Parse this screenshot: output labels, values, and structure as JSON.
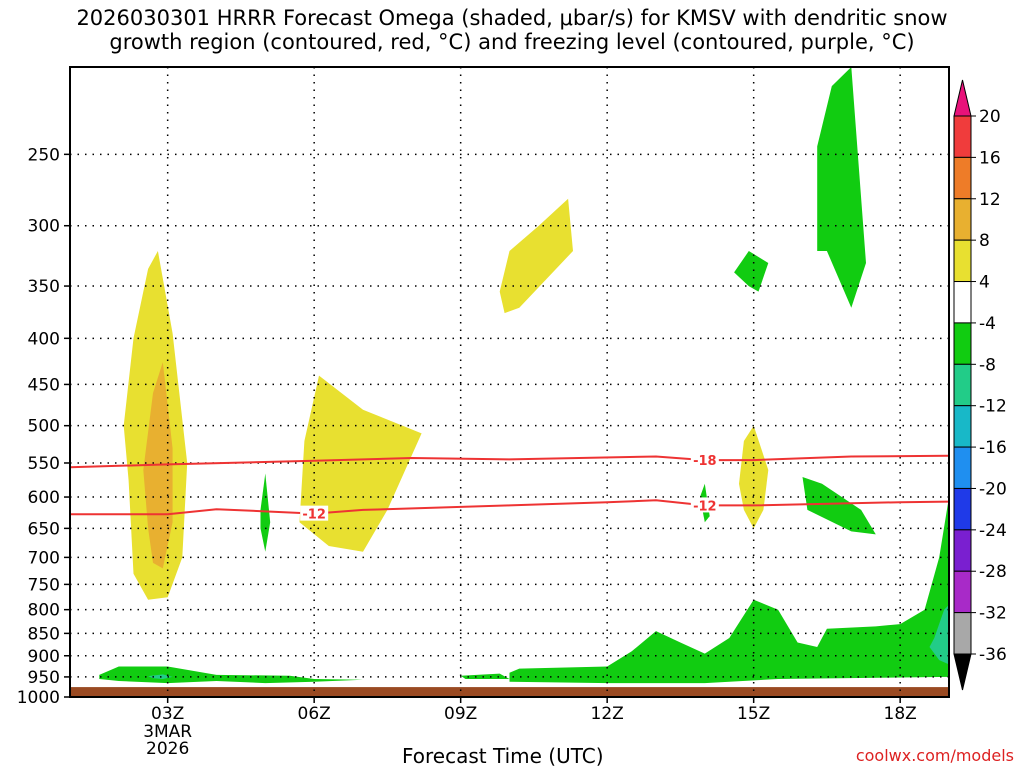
{
  "title": "2026030301 HRRR Forecast Omega (shaded, μbar/s) for KMSV with dendritic snow growth region (contoured, red, °C) and freezing level (contoured, purple, °C)",
  "credit": "coolwx.com/models",
  "colors": {
    "ground": "#9a4a22",
    "contour_red": "#ee3333",
    "grid": "#000000"
  },
  "chart_data": {
    "type": "heatmap",
    "title": "2026030301 HRRR Forecast Omega (shaded, μbar/s) for KMSV with dendritic snow growth region (contoured, red, °C) and freezing level (contoured, purple, °C)",
    "xlabel": "Forecast Time (UTC)",
    "ylabel": "",
    "x_ticks": [
      "03Z",
      "06Z",
      "09Z",
      "12Z",
      "15Z",
      "18Z"
    ],
    "x_first_tick_sub": [
      "3MAR",
      "2026"
    ],
    "y_ticks": [
      250,
      300,
      350,
      400,
      450,
      500,
      550,
      600,
      650,
      700,
      750,
      800,
      850,
      900,
      950,
      1000
    ],
    "xlim_hours": [
      1,
      19
    ],
    "ylim_hpa": [
      200,
      1000
    ],
    "grid": true,
    "colorbar": {
      "labels": [
        "20",
        "16",
        "12",
        "8",
        "4",
        "-4",
        "-8",
        "-12",
        "-16",
        "-20",
        "-24",
        "-28",
        "-32",
        "-36"
      ],
      "bands": [
        {
          "color": "#e8127a"
        },
        {
          "color": "#f03c3c"
        },
        {
          "color": "#ee7c28"
        },
        {
          "color": "#e8b030"
        },
        {
          "color": "#e8e030"
        },
        {
          "color": "#ffffff"
        },
        {
          "color": "#11cc11"
        },
        {
          "color": "#22cc88"
        },
        {
          "color": "#18b8c8"
        },
        {
          "color": "#1f8ff0"
        },
        {
          "color": "#1f3ae8"
        },
        {
          "color": "#7a1fd0"
        },
        {
          "color": "#a82ac8"
        },
        {
          "color": "#a8a8a8"
        },
        {
          "color": "#000000"
        }
      ]
    },
    "contours": [
      {
        "label": "-18",
        "points": [
          [
            1,
            556
          ],
          [
            3,
            552
          ],
          [
            6,
            547
          ],
          [
            8,
            543
          ],
          [
            10,
            545
          ],
          [
            13,
            541
          ],
          [
            14,
            546
          ],
          [
            15,
            546
          ],
          [
            17,
            541
          ],
          [
            19,
            540
          ]
        ]
      },
      {
        "label": "-12",
        "points": [
          [
            1,
            627
          ],
          [
            3,
            627
          ],
          [
            4,
            619
          ],
          [
            6,
            626
          ],
          [
            7,
            620
          ],
          [
            10,
            613
          ],
          [
            12,
            608
          ],
          [
            13,
            605
          ],
          [
            14,
            613
          ],
          [
            15,
            613
          ],
          [
            18,
            608
          ],
          [
            19,
            607
          ]
        ]
      }
    ],
    "regions": [
      {
        "color": "#e8e030",
        "points": [
          [
            2.2,
            575
          ],
          [
            2.1,
            500
          ],
          [
            2.3,
            400
          ],
          [
            2.6,
            335
          ],
          [
            2.8,
            320
          ],
          [
            3.1,
            395
          ],
          [
            3.4,
            550
          ],
          [
            3.3,
            700
          ],
          [
            3.0,
            775
          ],
          [
            2.6,
            780
          ],
          [
            2.3,
            730
          ]
        ]
      },
      {
        "color": "#e8b030",
        "points": [
          [
            2.6,
            650
          ],
          [
            2.5,
            560
          ],
          [
            2.7,
            460
          ],
          [
            2.9,
            425
          ],
          [
            3.1,
            530
          ],
          [
            3.1,
            640
          ],
          [
            2.9,
            720
          ],
          [
            2.7,
            710
          ]
        ]
      },
      {
        "color": "#e8e030",
        "points": [
          [
            5.7,
            640
          ],
          [
            5.8,
            520
          ],
          [
            6.1,
            440
          ],
          [
            7.0,
            480
          ],
          [
            8.2,
            510
          ],
          [
            7.5,
            620
          ],
          [
            7.0,
            690
          ],
          [
            6.3,
            680
          ]
        ]
      },
      {
        "color": "#e8e030",
        "points": [
          [
            9.8,
            355
          ],
          [
            10.0,
            320
          ],
          [
            10.6,
            300
          ],
          [
            11.2,
            280
          ],
          [
            11.3,
            320
          ],
          [
            10.2,
            370
          ],
          [
            9.9,
            375
          ]
        ]
      },
      {
        "color": "#e8e030",
        "points": [
          [
            14.7,
            580
          ],
          [
            14.8,
            520
          ],
          [
            15.0,
            500
          ],
          [
            15.3,
            560
          ],
          [
            15.2,
            620
          ],
          [
            15.0,
            650
          ],
          [
            14.8,
            620
          ]
        ]
      },
      {
        "color": "#11cc11",
        "points": [
          [
            16.3,
            320
          ],
          [
            16.3,
            245
          ],
          [
            16.6,
            210
          ],
          [
            17.0,
            200
          ],
          [
            17.3,
            330
          ],
          [
            17.0,
            370
          ],
          [
            16.5,
            320
          ]
        ]
      },
      {
        "color": "#11cc11",
        "points": [
          [
            14.6,
            338
          ],
          [
            14.9,
            320
          ],
          [
            15.3,
            330
          ],
          [
            15.1,
            355
          ],
          [
            14.9,
            350
          ]
        ]
      },
      {
        "color": "#11cc11",
        "points": [
          [
            4.9,
            620
          ],
          [
            5.0,
            565
          ],
          [
            5.1,
            640
          ],
          [
            5.0,
            690
          ],
          [
            4.9,
            650
          ]
        ]
      },
      {
        "color": "#11cc11",
        "points": [
          [
            13.9,
            600
          ],
          [
            14.0,
            580
          ],
          [
            14.1,
            630
          ],
          [
            14.0,
            640
          ]
        ]
      },
      {
        "color": "#11cc11",
        "points": [
          [
            16.0,
            570
          ],
          [
            16.4,
            580
          ],
          [
            17.2,
            620
          ],
          [
            17.5,
            660
          ],
          [
            17.0,
            655
          ],
          [
            16.1,
            620
          ]
        ]
      },
      {
        "color": "#11cc11",
        "points": [
          [
            10.0,
            940
          ],
          [
            10.2,
            930
          ],
          [
            12.0,
            925
          ],
          [
            12.5,
            890
          ],
          [
            13.0,
            845
          ],
          [
            13.5,
            870
          ],
          [
            14.0,
            895
          ],
          [
            14.5,
            860
          ],
          [
            15.0,
            780
          ],
          [
            15.5,
            800
          ],
          [
            15.9,
            870
          ],
          [
            16.3,
            880
          ],
          [
            16.5,
            840
          ],
          [
            17.5,
            835
          ],
          [
            18.0,
            830
          ],
          [
            18.5,
            800
          ],
          [
            18.8,
            700
          ],
          [
            19,
            600
          ],
          [
            19,
            950
          ],
          [
            15.5,
            955
          ],
          [
            14.0,
            965
          ],
          [
            12.0,
            965
          ],
          [
            10.0,
            962
          ]
        ]
      },
      {
        "color": "#11cc11",
        "points": [
          [
            9.0,
            947
          ],
          [
            9.8,
            942
          ],
          [
            10.0,
            955
          ],
          [
            9.1,
            955
          ]
        ]
      },
      {
        "color": "#11cc11",
        "points": [
          [
            1.6,
            945
          ],
          [
            2.0,
            925
          ],
          [
            3.0,
            925
          ],
          [
            4.0,
            945
          ],
          [
            5.5,
            947
          ],
          [
            6.0,
            955
          ],
          [
            7.0,
            957
          ],
          [
            6.0,
            962
          ],
          [
            5.0,
            965
          ],
          [
            4.0,
            960
          ],
          [
            3.0,
            965
          ],
          [
            2.0,
            960
          ],
          [
            1.6,
            955
          ]
        ]
      },
      {
        "color": "#22cc88",
        "points": [
          [
            18.7,
            860
          ],
          [
            18.9,
            800
          ],
          [
            19,
            790
          ],
          [
            19,
            920
          ],
          [
            18.8,
            910
          ],
          [
            18.6,
            880
          ]
        ]
      },
      {
        "color": "#22cc88",
        "points": [
          [
            2.6,
            948
          ],
          [
            2.9,
            944
          ],
          [
            3.1,
            950
          ],
          [
            2.9,
            955
          ],
          [
            2.7,
            953
          ]
        ]
      }
    ],
    "ground_hpa": 975
  }
}
